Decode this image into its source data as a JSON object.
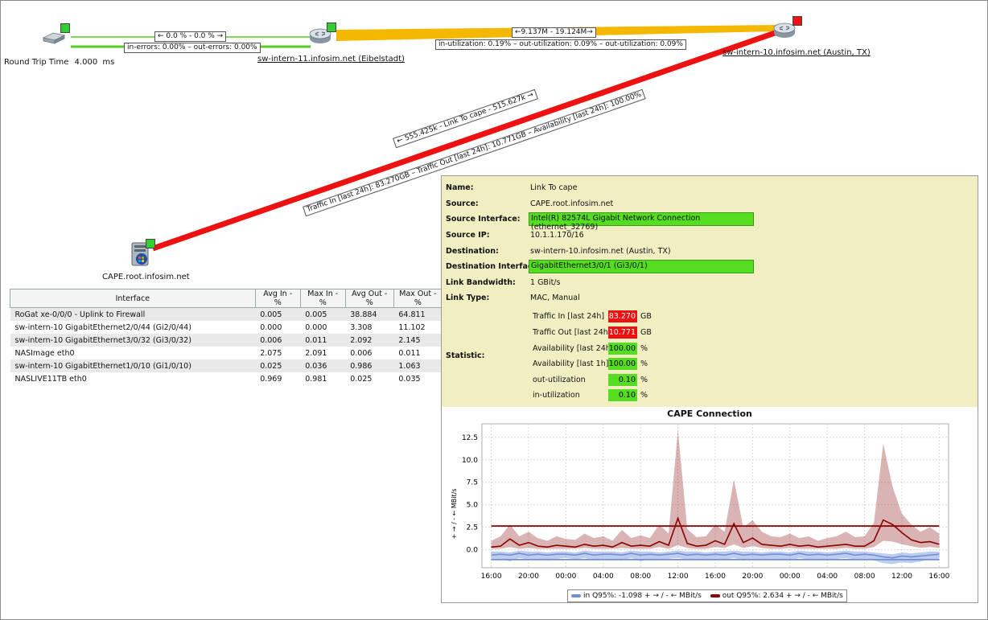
{
  "nodes": {
    "left_switch": {
      "label": "",
      "status_color": "#33cc33"
    },
    "eibelstadt": {
      "label": "sw-intern-11.infosim.net (Eibelstadt)",
      "status_color": "#33cc33"
    },
    "austin": {
      "label": "sw-intern-10.infosim.net (Austin, TX)",
      "status_color": "#ee1111"
    },
    "cape": {
      "label": "CAPE.root.infosim.net",
      "status_color": "#33cc33"
    }
  },
  "rtt": {
    "label": "Round Trip Time",
    "value": "4.000",
    "unit": "ms"
  },
  "links": {
    "link1_top": "← 0.0 % - 0.0 % →",
    "link1_bottom": "in-errors: 0.00% – out-errors: 0.00%",
    "link2_top": "←9.137M  -  19.124M→",
    "link2_bottom": "in-utilization: 0.19% – out-utilization: 0.09% – out-utilization: 0.09%",
    "link3_top": "← 555.425k - Link To cape - 515.627k →",
    "link3_bottom": "Traffic In [last 24h]: 83.270GB – Traffic Out [last 24h]: 10.771GB – Availability [last 24h]: 100.00%",
    "colors": {
      "green": "#55cc22",
      "orange": "#f5b800",
      "red": "#ee1111"
    }
  },
  "table": {
    "headers": [
      "Interface",
      "Avg In - %",
      "Max In - %",
      "Avg Out - %",
      "Max Out - %"
    ],
    "rows": [
      [
        "RoGat xe-0/0/0 - Uplink to Firewall",
        "0.005",
        "0.005",
        "38.884",
        "64.811"
      ],
      [
        "sw-intern-10 GigabitEthernet2/0/44 (Gi2/0/44)",
        "0.000",
        "0.000",
        "3.308",
        "11.102"
      ],
      [
        "sw-intern-10 GigabitEthernet3/0/32 (Gi3/0/32)",
        "0.006",
        "0.011",
        "2.092",
        "2.145"
      ],
      [
        "NASImage eth0",
        "2.075",
        "2.091",
        "0.006",
        "0.011"
      ],
      [
        "sw-intern-10 GigabitEthernet1/0/10 (Gi1/0/10)",
        "0.025",
        "0.036",
        "0.986",
        "1.063"
      ],
      [
        "NASLIVE11TB eth0",
        "0.969",
        "0.981",
        "0.025",
        "0.035"
      ]
    ]
  },
  "popup": {
    "name_key": "Name:",
    "name": "Link To cape",
    "source_key": "Source:",
    "source": "CAPE.root.infosim.net",
    "source_if_key": "Source Interface:",
    "source_if": "Intel(R) 82574L Gigabit Network Connection (ethernet_32769)",
    "source_ip_key": "Source IP:",
    "source_ip": "10.1.1.170/16",
    "dest_key": "Destination:",
    "dest": "sw-intern-10.infosim.net (Austin, TX)",
    "dest_if_key": "Destination Interface:",
    "dest_if": "GigabitEthernet3/0/1 (Gi3/0/1)",
    "bandwidth_key": "Link Bandwidth:",
    "bandwidth": "1 GBit/s",
    "type_key": "Link Type:",
    "type": "MAC, Manual",
    "statistic_key": "Statistic:",
    "stats": [
      {
        "label": "Traffic In [last 24h]",
        "value": "83.270",
        "unit": "GB",
        "color": "red"
      },
      {
        "label": "Traffic Out [last 24h]",
        "value": "10.771",
        "unit": "GB",
        "color": "red"
      },
      {
        "label": "Availability [last 24h]",
        "value": "100.00",
        "unit": "%",
        "color": "green"
      },
      {
        "label": "Availability [last 1h]",
        "value": "100.00",
        "unit": "%",
        "color": "green"
      },
      {
        "label": "out-utilization",
        "value": "0.10",
        "unit": "%",
        "color": "green"
      },
      {
        "label": "in-utilization",
        "value": "0.10",
        "unit": "%",
        "color": "green"
      }
    ]
  },
  "chart_data": {
    "type": "area",
    "title": "CAPE Connection",
    "ylabel": "+ → / - ← MBit/s",
    "xlabel": "",
    "ylim": [
      -2.0,
      14.0
    ],
    "yticks": [
      "0.0",
      "2.5",
      "5.0",
      "7.5",
      "10.0",
      "12.5"
    ],
    "ytick_values": [
      0,
      2.5,
      5,
      7.5,
      10,
      12.5
    ],
    "x_ticks": [
      "16:00",
      "20:00",
      "00:00",
      "04:00",
      "08:00",
      "12:00",
      "16:00",
      "20:00",
      "00:00",
      "04:00",
      "08:00",
      "12:00",
      "16:00"
    ],
    "x_tick_hours": [
      0,
      4,
      8,
      12,
      16,
      20,
      24,
      28,
      32,
      36,
      40,
      44,
      48
    ],
    "xlim_hours": [
      -1,
      49
    ],
    "grid": true,
    "legend_position": "bottom",
    "series": [
      {
        "name": "in Q95%: -1.098 + → / - ← MBit/s",
        "color": "#6f8fd8",
        "q95": -1.098,
        "x": [
          0,
          1,
          2,
          3,
          4,
          5,
          6,
          7,
          8,
          9,
          10,
          11,
          12,
          13,
          14,
          15,
          16,
          17,
          18,
          19,
          20,
          21,
          22,
          23,
          24,
          25,
          26,
          27,
          28,
          29,
          30,
          31,
          32,
          33,
          34,
          35,
          36,
          37,
          38,
          39,
          40,
          41,
          42,
          43,
          44,
          45,
          46,
          47,
          48
        ],
        "values": [
          -0.6,
          -0.5,
          -0.6,
          -0.4,
          -0.6,
          -0.5,
          -0.6,
          -0.5,
          -0.5,
          -0.6,
          -0.4,
          -0.6,
          -0.5,
          -0.5,
          -0.6,
          -0.4,
          -0.6,
          -0.5,
          -0.6,
          -0.5,
          -0.4,
          -0.6,
          -0.5,
          -0.6,
          -0.5,
          -0.6,
          -0.4,
          -0.6,
          -0.5,
          -0.6,
          -0.5,
          -0.5,
          -0.6,
          -0.4,
          -0.6,
          -0.5,
          -0.6,
          -0.5,
          -0.4,
          -0.6,
          -0.5,
          -0.6,
          -0.8,
          -0.9,
          -0.7,
          -0.8,
          -0.7,
          -0.6,
          -0.5
        ],
        "band_min": [
          -1.2,
          -1.0,
          -1.3,
          -0.9,
          -1.1,
          -1.0,
          -1.2,
          -1.0,
          -0.9,
          -1.1,
          -0.9,
          -1.2,
          -1.0,
          -1.0,
          -1.2,
          -0.9,
          -1.3,
          -1.0,
          -1.1,
          -1.0,
          -0.9,
          -1.1,
          -1.0,
          -1.2,
          -1.0,
          -1.1,
          -0.9,
          -1.2,
          -1.0,
          -1.1,
          -1.0,
          -1.0,
          -1.2,
          -0.9,
          -1.1,
          -1.0,
          -1.2,
          -1.0,
          -0.9,
          -1.1,
          -1.0,
          -1.2,
          -1.5,
          -1.6,
          -1.4,
          -1.5,
          -1.3,
          -1.1,
          -1.0
        ],
        "band_max": [
          -0.2,
          -0.2,
          -0.3,
          -0.1,
          -0.2,
          -0.2,
          -0.3,
          -0.2,
          -0.2,
          -0.3,
          -0.1,
          -0.2,
          -0.2,
          -0.2,
          -0.3,
          -0.1,
          -0.2,
          -0.2,
          -0.3,
          -0.2,
          -0.1,
          -0.2,
          -0.2,
          -0.3,
          -0.2,
          -0.2,
          -0.1,
          -0.2,
          -0.2,
          -0.3,
          -0.2,
          -0.2,
          -0.3,
          -0.1,
          -0.2,
          -0.2,
          -0.3,
          -0.2,
          -0.1,
          -0.2,
          -0.2,
          -0.3,
          -0.4,
          -0.5,
          -0.3,
          -0.4,
          -0.3,
          -0.2,
          -0.2
        ]
      },
      {
        "name": "out Q95%: 2.634 + → / - ← MBit/s",
        "color": "#8b0000",
        "q95": 2.634,
        "x": [
          0,
          1,
          2,
          3,
          4,
          5,
          6,
          7,
          8,
          9,
          10,
          11,
          12,
          13,
          14,
          15,
          16,
          17,
          18,
          19,
          20,
          21,
          22,
          23,
          24,
          25,
          26,
          27,
          28,
          29,
          30,
          31,
          32,
          33,
          34,
          35,
          36,
          37,
          38,
          39,
          40,
          41,
          42,
          43,
          44,
          45,
          46,
          47,
          48
        ],
        "values": [
          0.3,
          0.4,
          1.2,
          0.5,
          0.8,
          0.4,
          0.3,
          0.5,
          0.4,
          0.3,
          0.6,
          0.4,
          0.5,
          0.3,
          0.8,
          0.4,
          0.5,
          0.4,
          0.9,
          0.5,
          3.5,
          0.7,
          0.4,
          0.5,
          1.0,
          0.6,
          2.9,
          0.8,
          1.3,
          0.6,
          0.5,
          0.4,
          0.6,
          0.4,
          0.5,
          0.3,
          0.4,
          0.5,
          0.6,
          0.4,
          0.4,
          1.0,
          3.3,
          2.8,
          1.9,
          1.1,
          0.8,
          0.9,
          0.6
        ],
        "band_min": [
          0.1,
          0.1,
          0.3,
          0.1,
          0.2,
          0.1,
          0.1,
          0.1,
          0.1,
          0.1,
          0.2,
          0.1,
          0.1,
          0.1,
          0.2,
          0.1,
          0.1,
          0.1,
          0.3,
          0.1,
          0.5,
          0.2,
          0.1,
          0.1,
          0.3,
          0.2,
          0.6,
          0.2,
          0.4,
          0.2,
          0.1,
          0.1,
          0.2,
          0.1,
          0.1,
          0.1,
          0.1,
          0.1,
          0.2,
          0.1,
          0.1,
          0.3,
          1.0,
          0.9,
          0.6,
          0.4,
          0.2,
          0.3,
          0.2
        ],
        "band_max": [
          1.0,
          1.5,
          2.8,
          1.5,
          2.0,
          1.3,
          1.0,
          1.5,
          1.2,
          1.1,
          1.8,
          1.3,
          1.5,
          1.0,
          2.2,
          1.3,
          1.6,
          1.3,
          2.8,
          1.8,
          13.3,
          2.3,
          1.4,
          1.5,
          2.8,
          2.0,
          7.8,
          2.5,
          3.3,
          2.0,
          1.5,
          1.4,
          1.8,
          1.3,
          1.5,
          1.0,
          1.3,
          1.5,
          2.0,
          1.4,
          1.5,
          3.0,
          11.8,
          7.0,
          4.0,
          2.8,
          2.0,
          2.5,
          1.8
        ]
      }
    ]
  }
}
